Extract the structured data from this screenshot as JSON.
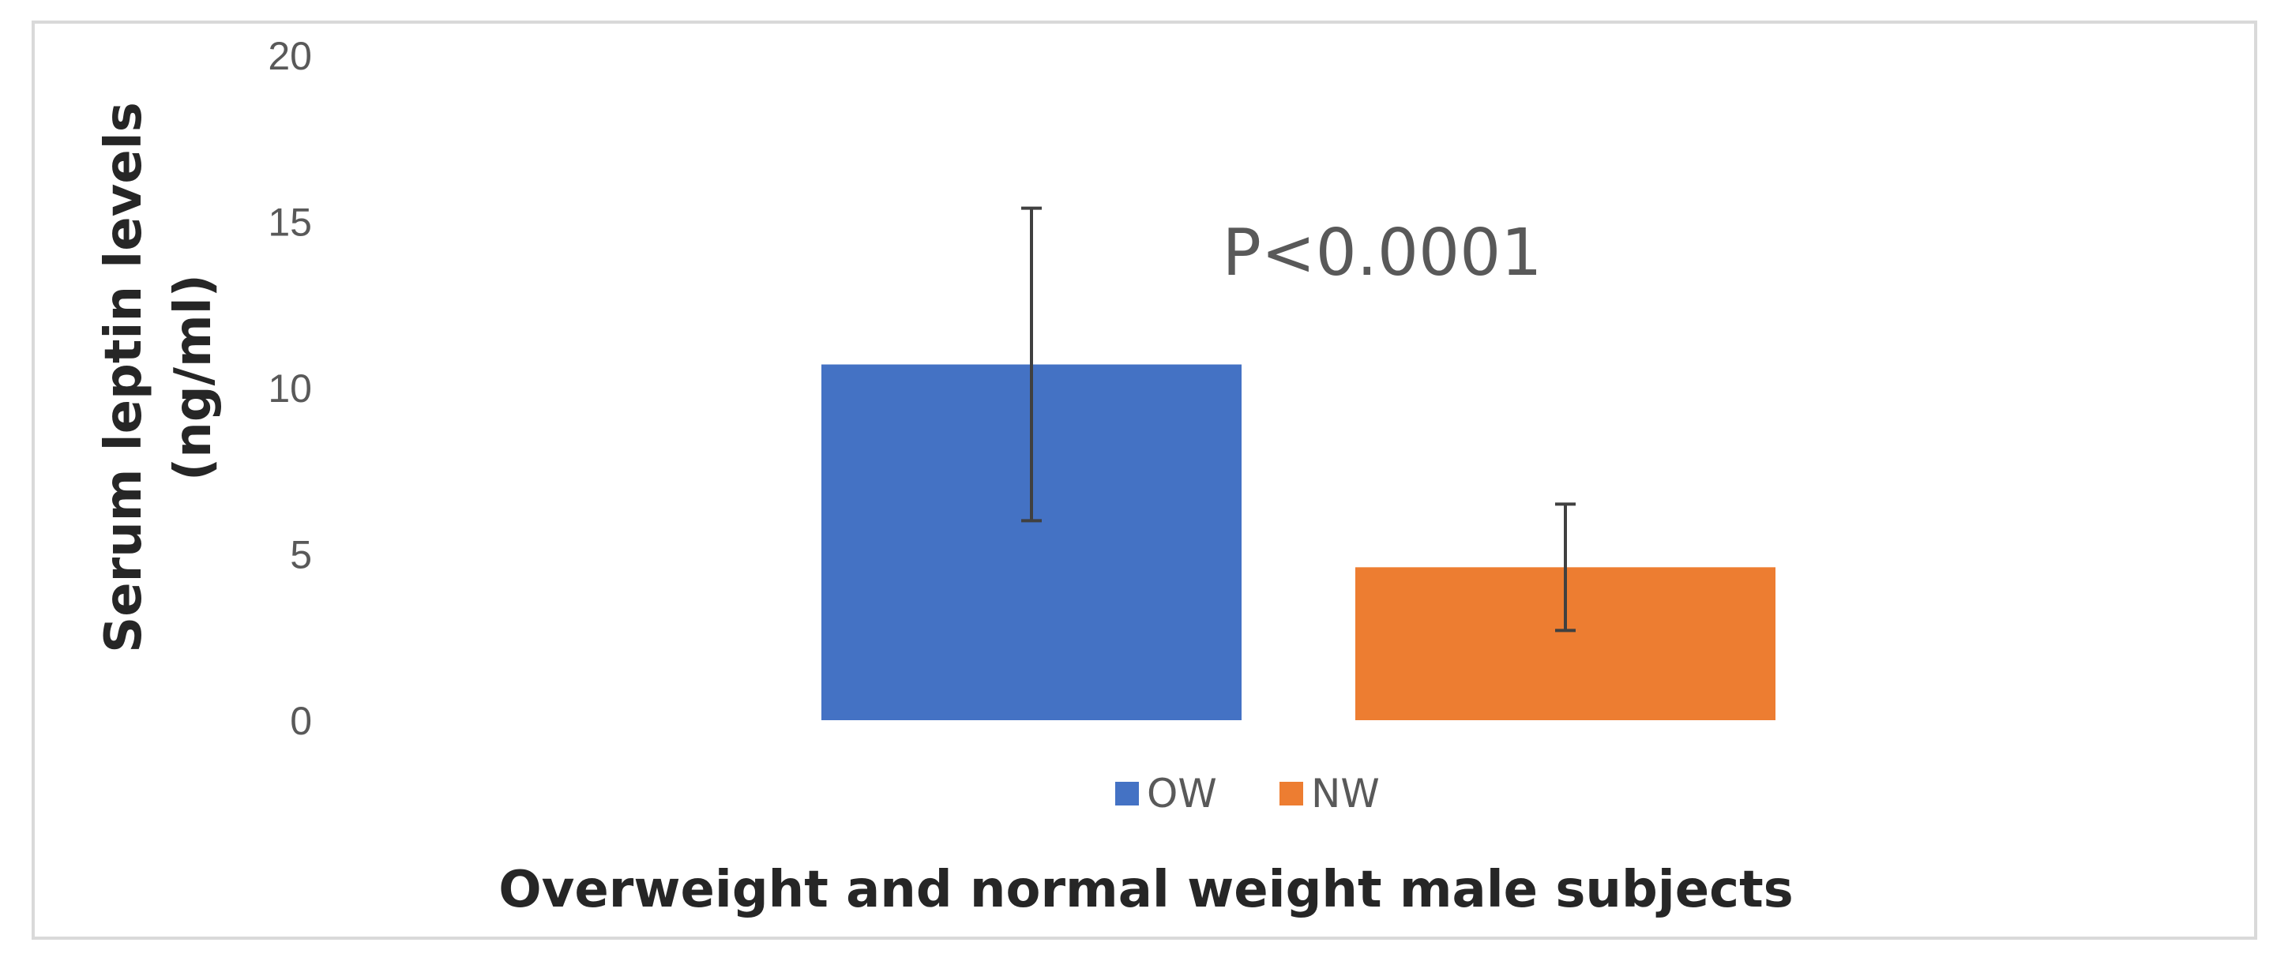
{
  "chart_data": {
    "type": "bar",
    "title": "",
    "xlabel": "Overweight and normal weight male subjects",
    "ylabel_lines": [
      "Serum leptin levels",
      "(ng/ml)"
    ],
    "ylim": [
      0,
      20
    ],
    "yticks": [
      "0",
      "5",
      "10",
      "15",
      "20"
    ],
    "series": [
      {
        "name": "OW",
        "value": 10.7,
        "error_low": 6.0,
        "error_high": 15.4,
        "color": "#4472C4"
      },
      {
        "name": "NW",
        "value": 4.6,
        "error_low": 2.7,
        "error_high": 6.5,
        "color": "#ED7D31"
      }
    ],
    "annotation": "P<0.0001",
    "legend_position": "bottom",
    "grid": false
  }
}
